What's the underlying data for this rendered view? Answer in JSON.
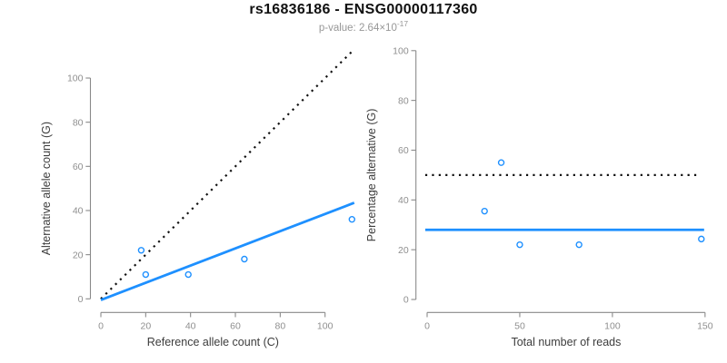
{
  "header": {
    "title": "rs16836186 - ENSG00000117360",
    "subtitle_prefix": "p-value: 2.64×10",
    "subtitle_exponent": "-17"
  },
  "colors": {
    "accent_blue": "#1E90FF",
    "axis_gray": "#8a8a8a",
    "tick_label_gray": "#8f8f8f",
    "axis_title_dark": "#3d3d3d",
    "line_black": "#111111",
    "background": "#ffffff"
  },
  "chart_data": [
    {
      "type": "scatter",
      "panel": "allele-counts",
      "xlabel": "Reference allele count (C)",
      "ylabel": "Alternative allele count (G)",
      "xticks": [
        0,
        20,
        40,
        60,
        80,
        100
      ],
      "yticks": [
        0,
        20,
        40,
        60,
        80,
        100
      ],
      "xlim": [
        0,
        112
      ],
      "ylim": [
        0,
        100
      ],
      "grid": false,
      "points": [
        [
          18,
          22
        ],
        [
          20,
          11
        ],
        [
          39,
          11
        ],
        [
          64,
          18
        ],
        [
          112,
          36
        ]
      ],
      "lines": [
        {
          "role": "identity",
          "dashed": true,
          "points": [
            [
              0,
              0
            ],
            [
              112.5,
              112.5
            ]
          ]
        },
        {
          "role": "fit",
          "dashed": false,
          "points": [
            [
              0,
              -0.5
            ],
            [
              113,
              43.5
            ]
          ]
        }
      ]
    },
    {
      "type": "scatter",
      "panel": "percentage-alternative",
      "xlabel": "Total number of reads",
      "ylabel": "Percentage alternative (G)",
      "xticks": [
        0,
        50,
        100,
        150
      ],
      "yticks": [
        0,
        20,
        40,
        60,
        80,
        100
      ],
      "xlim": [
        0,
        150
      ],
      "ylim": [
        0,
        100
      ],
      "grid": false,
      "points": [
        [
          31,
          35.5
        ],
        [
          40,
          55
        ],
        [
          50,
          22
        ],
        [
          82,
          22
        ],
        [
          148,
          24.3
        ]
      ],
      "lines": [
        {
          "role": "null-expectation",
          "dashed": true,
          "points": [
            [
              -1,
              50
            ],
            [
              147,
              50
            ]
          ]
        },
        {
          "role": "mean",
          "dashed": false,
          "points": [
            [
              -1,
              28
            ],
            [
              149.5,
              28
            ]
          ]
        }
      ]
    }
  ]
}
